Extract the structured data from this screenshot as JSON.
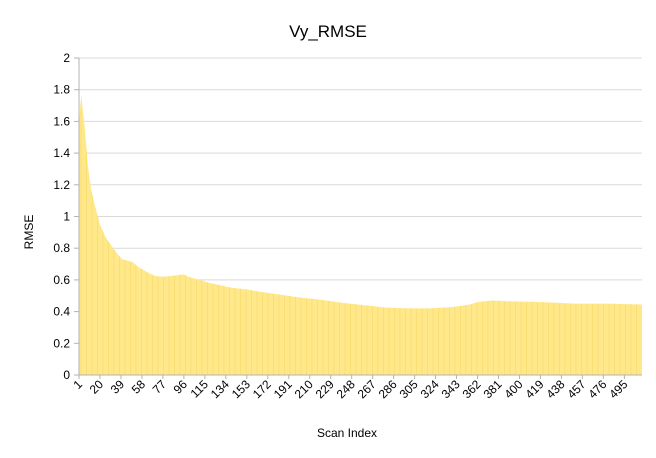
{
  "chart_data": {
    "type": "area",
    "title": "Vy_RMSE",
    "xlabel": "Scan Index",
    "ylabel": "RMSE",
    "ylim": [
      0,
      2
    ],
    "yticks": [
      "0",
      "0.2",
      "0.4",
      "0.6",
      "0.8",
      "1",
      "1.2",
      "1.4",
      "1.6",
      "1.8",
      "2"
    ],
    "xlim": [
      1,
      511
    ],
    "xticks": [
      "1",
      "20",
      "39",
      "58",
      "77",
      "96",
      "115",
      "134",
      "153",
      "172",
      "191",
      "210",
      "229",
      "248",
      "267",
      "286",
      "305",
      "324",
      "343",
      "362",
      "381",
      "400",
      "419",
      "438",
      "457",
      "476",
      "495"
    ],
    "grid": "horizontal",
    "fill_color": "#ffe88a",
    "stripe_color": "#f7d35a",
    "series": [
      {
        "x": [
          1,
          3,
          6,
          9,
          12,
          15,
          20,
          25,
          30,
          35,
          40,
          46,
          50,
          55,
          60,
          65,
          70,
          77,
          85,
          90,
          96,
          100,
          110,
          120,
          130,
          140,
          153,
          165,
          180,
          200,
          220,
          240,
          260,
          280,
          300,
          320,
          340,
          355,
          362,
          375,
          390,
          420,
          450,
          480,
          511
        ],
        "y": [
          1.58,
          1.76,
          1.58,
          1.32,
          1.17,
          1.08,
          0.95,
          0.87,
          0.82,
          0.77,
          0.73,
          0.72,
          0.71,
          0.68,
          0.66,
          0.64,
          0.625,
          0.62,
          0.625,
          0.63,
          0.635,
          0.62,
          0.6,
          0.58,
          0.565,
          0.55,
          0.54,
          0.525,
          0.51,
          0.49,
          0.475,
          0.455,
          0.44,
          0.425,
          0.42,
          0.42,
          0.43,
          0.445,
          0.46,
          0.47,
          0.465,
          0.46,
          0.45,
          0.45,
          0.445
        ]
      }
    ]
  }
}
